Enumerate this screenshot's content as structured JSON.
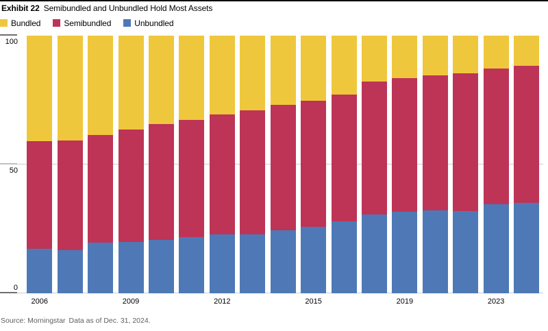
{
  "header": {
    "exhibit_label": "Exhibit 22",
    "title": "Semibundled and Unbundled Hold Most Assets"
  },
  "legend": [
    {
      "label": "Bundled",
      "color": "#efc73c"
    },
    {
      "label": "Semibundled",
      "color": "#bd3457"
    },
    {
      "label": "Unbundled",
      "color": "#4e79b6"
    }
  ],
  "source": {
    "label": "Source: Morningstar",
    "note": "Data as of Dec. 31, 2024."
  },
  "chart_data": {
    "type": "bar",
    "stacked": true,
    "stack_total": 100,
    "title": "Semibundled and Unbundled Hold Most Assets",
    "ylim": [
      0,
      100
    ],
    "y_ticks": [
      100,
      50,
      0
    ],
    "gridlines_at": [
      50,
      0
    ],
    "legend_position": "top",
    "x_tick_labels": [
      "2006",
      "",
      "",
      "2009",
      "",
      "",
      "2012",
      "",
      "",
      "2015",
      "",
      "",
      "2019",
      "",
      "",
      "2023",
      ""
    ],
    "series": [
      {
        "name": "Bundled",
        "color": "#efc73c",
        "values": [
          41.0,
          40.6,
          38.5,
          36.4,
          34.2,
          32.6,
          30.6,
          29.0,
          26.8,
          25.2,
          22.8,
          17.8,
          16.5,
          15.4,
          14.6,
          12.7,
          11.8
        ]
      },
      {
        "name": "Semibundled",
        "color": "#bd3457",
        "values": [
          41.6,
          42.6,
          41.9,
          43.6,
          45.1,
          45.5,
          46.4,
          48.2,
          48.7,
          49.0,
          49.3,
          51.5,
          51.9,
          52.3,
          53.4,
          52.8,
          53.1
        ]
      },
      {
        "name": "Unbundled",
        "color": "#4e79b6",
        "values": [
          17.4,
          16.8,
          19.6,
          20.0,
          20.7,
          21.9,
          23.0,
          22.8,
          24.5,
          25.8,
          27.9,
          30.7,
          31.6,
          32.3,
          32.0,
          34.5,
          35.1
        ]
      }
    ]
  }
}
